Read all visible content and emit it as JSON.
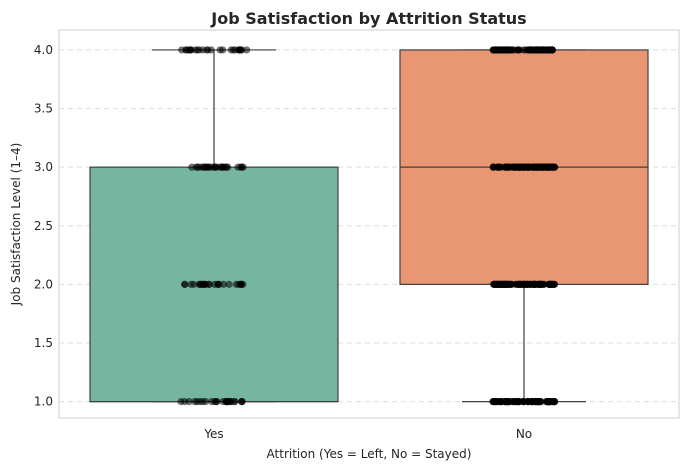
{
  "chart_data": {
    "type": "box",
    "title": "Job Satisfaction by Attrition Status",
    "xlabel": "Attrition (Yes = Left, No = Stayed)",
    "ylabel": "Job Satisfaction Level (1–4)",
    "categories": [
      "Yes",
      "No"
    ],
    "ylim": [
      0.86,
      4.17
    ],
    "yticks": [
      "1.0",
      "1.5",
      "2.0",
      "2.5",
      "3.0",
      "3.5",
      "4.0"
    ],
    "grid": true,
    "boxes": [
      {
        "category": "Yes",
        "min": 1.0,
        "q1": 1.0,
        "median": 1.0,
        "q3": 3.0,
        "max": 4.0,
        "color": "#76b6a0"
      },
      {
        "category": "No",
        "min": 1.0,
        "q1": 2.0,
        "median": 3.0,
        "q3": 4.0,
        "max": 4.0,
        "color": "#e99773"
      }
    ],
    "strip_levels": [
      {
        "category": "Yes",
        "y": 1.0,
        "density": "medium"
      },
      {
        "category": "Yes",
        "y": 2.0,
        "density": "medium"
      },
      {
        "category": "Yes",
        "y": 3.0,
        "density": "medium"
      },
      {
        "category": "Yes",
        "y": 4.0,
        "density": "medium"
      },
      {
        "category": "No",
        "y": 1.0,
        "density": "high"
      },
      {
        "category": "No",
        "y": 2.0,
        "density": "high"
      },
      {
        "category": "No",
        "y": 3.0,
        "density": "high"
      },
      {
        "category": "No",
        "y": 4.0,
        "density": "high"
      }
    ]
  }
}
